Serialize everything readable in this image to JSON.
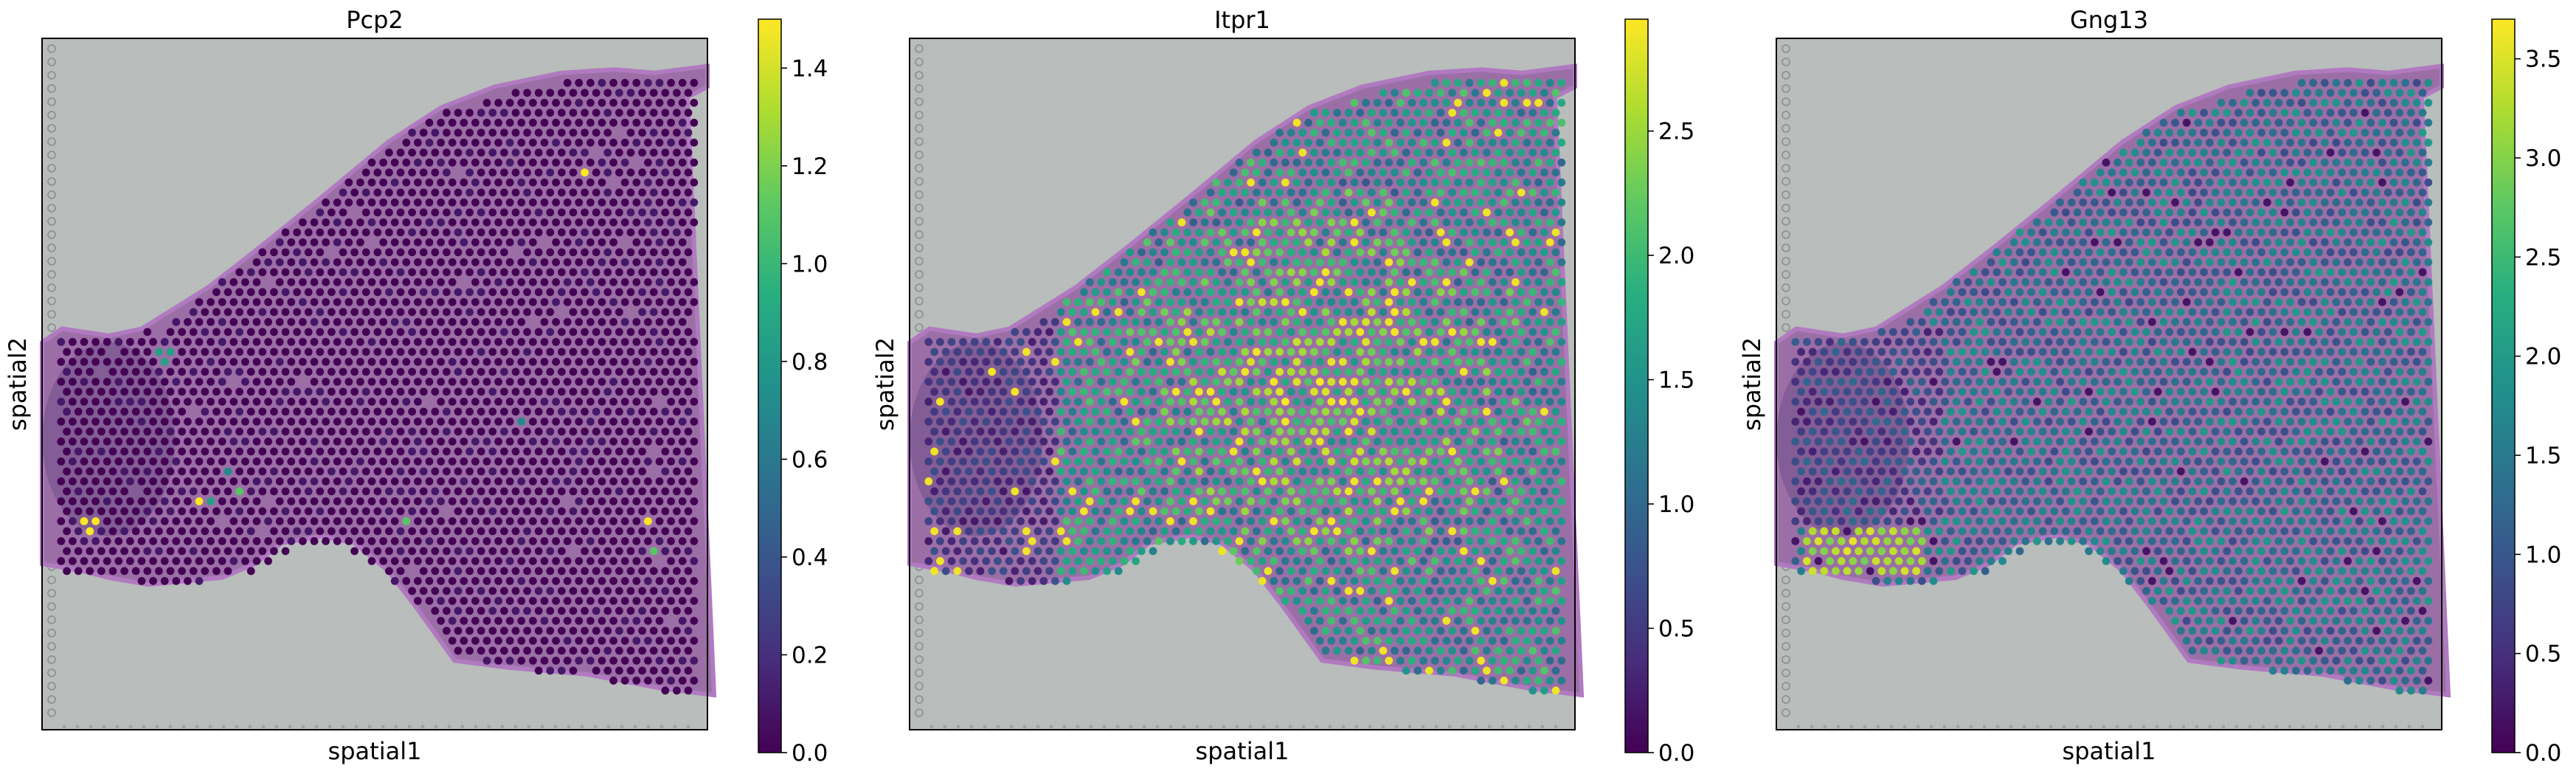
{
  "figure": {
    "panels": [
      {
        "title": "Pcp2",
        "xlabel": "spatial1",
        "ylabel": "spatial2"
      },
      {
        "title": "Itpr1",
        "xlabel": "spatial1",
        "ylabel": "spatial2"
      },
      {
        "title": "Gng13",
        "xlabel": "spatial1",
        "ylabel": "spatial2"
      }
    ]
  },
  "chart_data": [
    {
      "type": "scatter",
      "title": "Pcp2",
      "xlabel": "spatial1",
      "ylabel": "spatial2",
      "background": "tissue-section-he-image",
      "colormap": "viridis",
      "colorbar": {
        "range": [
          0.0,
          1.5
        ],
        "ticks": [
          0.0,
          0.2,
          0.4,
          0.6,
          0.8,
          1.0,
          1.2,
          1.4
        ],
        "tick_labels": [
          "0.0",
          "0.2",
          "0.4",
          "0.6",
          "0.8",
          "1.0",
          "1.2",
          "1.4"
        ]
      },
      "expression": {
        "baseline": 0.0,
        "typical_max": 0.1,
        "hotspots": [
          0.85,
          1.5,
          1.1,
          0.7
        ]
      }
    },
    {
      "type": "scatter",
      "title": "Itpr1",
      "xlabel": "spatial1",
      "ylabel": "spatial2",
      "background": "tissue-section-he-image",
      "colormap": "viridis",
      "colorbar": {
        "range": [
          0.0,
          2.95
        ],
        "ticks": [
          0.0,
          0.5,
          1.0,
          1.5,
          2.0,
          2.5
        ],
        "tick_labels": [
          "0.0",
          "0.5",
          "1.0",
          "1.5",
          "2.0",
          "2.5"
        ]
      },
      "expression": {
        "low_region": 0.6,
        "mid_region": 1.6,
        "high_region": 2.4
      }
    },
    {
      "type": "scatter",
      "title": "Gng13",
      "xlabel": "spatial1",
      "ylabel": "spatial2",
      "background": "tissue-section-he-image",
      "colormap": "viridis",
      "colorbar": {
        "range": [
          0.0,
          3.7
        ],
        "ticks": [
          0.0,
          0.5,
          1.0,
          1.5,
          2.0,
          2.5,
          3.0,
          3.5
        ],
        "tick_labels": [
          "0.0",
          "0.5",
          "1.0",
          "1.5",
          "2.0",
          "2.5",
          "3.0",
          "3.5"
        ]
      },
      "expression": {
        "typical": 1.5,
        "hotspot": 3.6
      }
    }
  ],
  "colors": {
    "slide_background": "#b9bdbb",
    "tissue": "#9b6fa6",
    "tissue_edge": "#b07ac0"
  }
}
